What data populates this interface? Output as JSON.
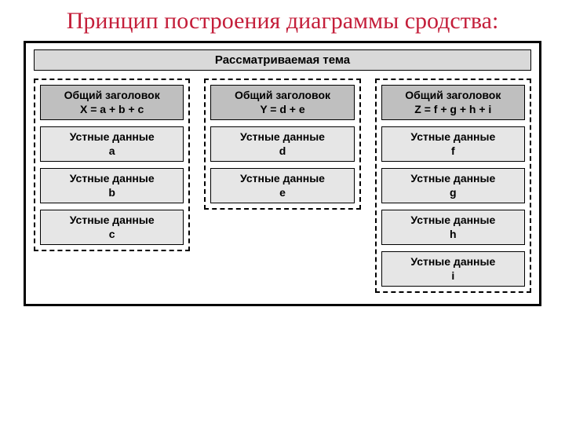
{
  "title": "Принцип построения диаграммы сродства:",
  "topic": "Рассматриваемая тема",
  "colors": {
    "title_color": "#c41e3a",
    "frame_border": "#000000",
    "topic_bg": "#d9d9d9",
    "header_bg": "#bfbfbf",
    "data_bg": "#e6e6e6",
    "page_bg": "#ffffff"
  },
  "typography": {
    "title_fontsize": 30,
    "title_family": "Times New Roman",
    "box_fontsize": 14,
    "topic_fontsize": 15,
    "weight": "bold"
  },
  "layout": {
    "type": "infographic",
    "columns": 3,
    "outer_border_width": 3,
    "group_border_style": "dashed",
    "gap_between_columns": 18
  },
  "groups": [
    {
      "header_line1": "Общий заголовок",
      "header_line2": "X = a + b + c",
      "items": [
        {
          "line1": "Устные данные",
          "line2": "a"
        },
        {
          "line1": "Устные данные",
          "line2": "b"
        },
        {
          "line1": "Устные данные",
          "line2": "c"
        }
      ]
    },
    {
      "header_line1": "Общий заголовок",
      "header_line2": "Y = d + e",
      "items": [
        {
          "line1": "Устные данные",
          "line2": "d"
        },
        {
          "line1": "Устные данные",
          "line2": "e"
        }
      ]
    },
    {
      "header_line1": "Общий заголовок",
      "header_line2": "Z = f + g + h + i",
      "items": [
        {
          "line1": "Устные данные",
          "line2": "f"
        },
        {
          "line1": "Устные данные",
          "line2": "g"
        },
        {
          "line1": "Устные данные",
          "line2": "h"
        },
        {
          "line1": "Устные данные",
          "line2": "i"
        }
      ]
    }
  ]
}
